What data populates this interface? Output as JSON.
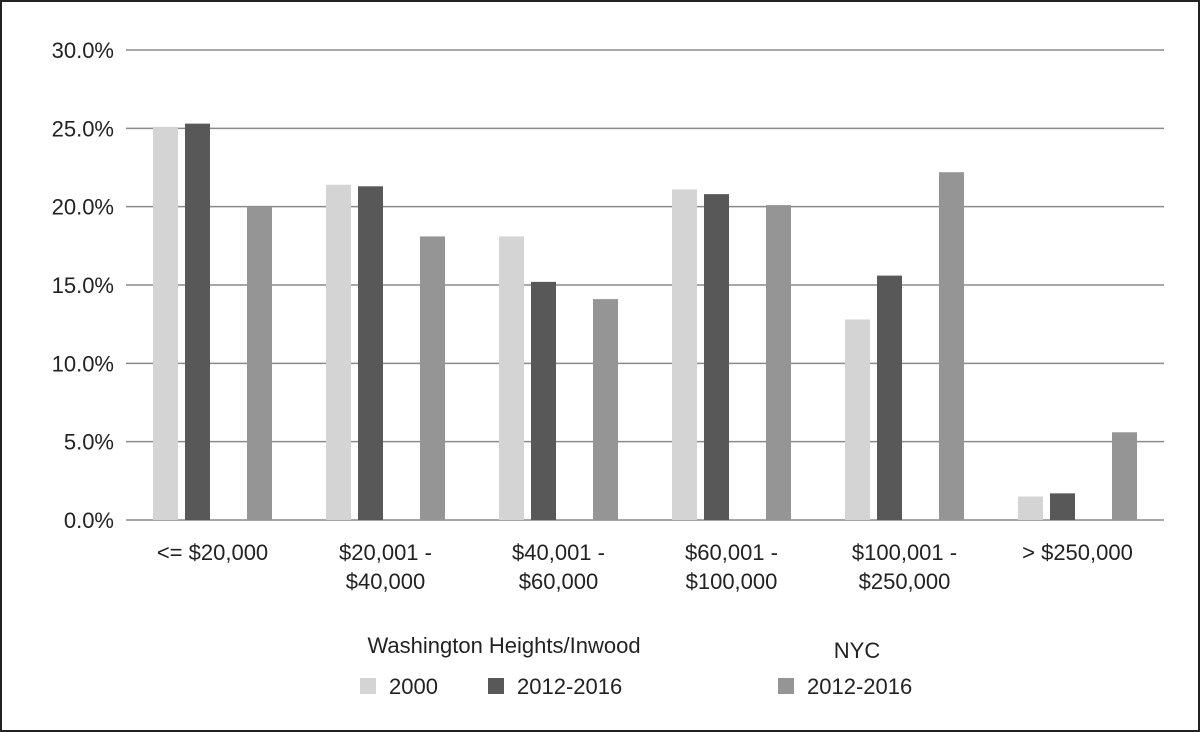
{
  "chart_data": {
    "type": "bar",
    "categories": [
      [
        "<= $20,000"
      ],
      [
        "$20,001 -",
        "$40,000"
      ],
      [
        "$40,001 -",
        "$60,000"
      ],
      [
        "$60,001 -",
        "$100,000"
      ],
      [
        "$100,001 -",
        "$250,000"
      ],
      [
        "> $250,000"
      ]
    ],
    "series": [
      {
        "name": "2000",
        "group": "Washington Heights/Inwood",
        "color": "#d4d4d4",
        "values": [
          25.1,
          21.4,
          18.1,
          21.1,
          12.8,
          1.5
        ]
      },
      {
        "name": "2012-2016",
        "group": "Washington Heights/Inwood",
        "color": "#585858",
        "values": [
          25.3,
          21.3,
          15.2,
          20.8,
          15.6,
          1.7
        ]
      },
      {
        "name": "2012-2016",
        "group": "NYC",
        "color": "#959595",
        "values": [
          20.0,
          18.1,
          14.1,
          20.1,
          22.2,
          5.6
        ]
      }
    ],
    "ylim": [
      0,
      30
    ],
    "yticks": [
      "0.0%",
      "5.0%",
      "10.0%",
      "15.0%",
      "20.0%",
      "25.0%",
      "30.0%"
    ],
    "grid": true,
    "legend_groups": [
      "Washington Heights/Inwood",
      "NYC"
    ],
    "legend_position": "bottom"
  }
}
